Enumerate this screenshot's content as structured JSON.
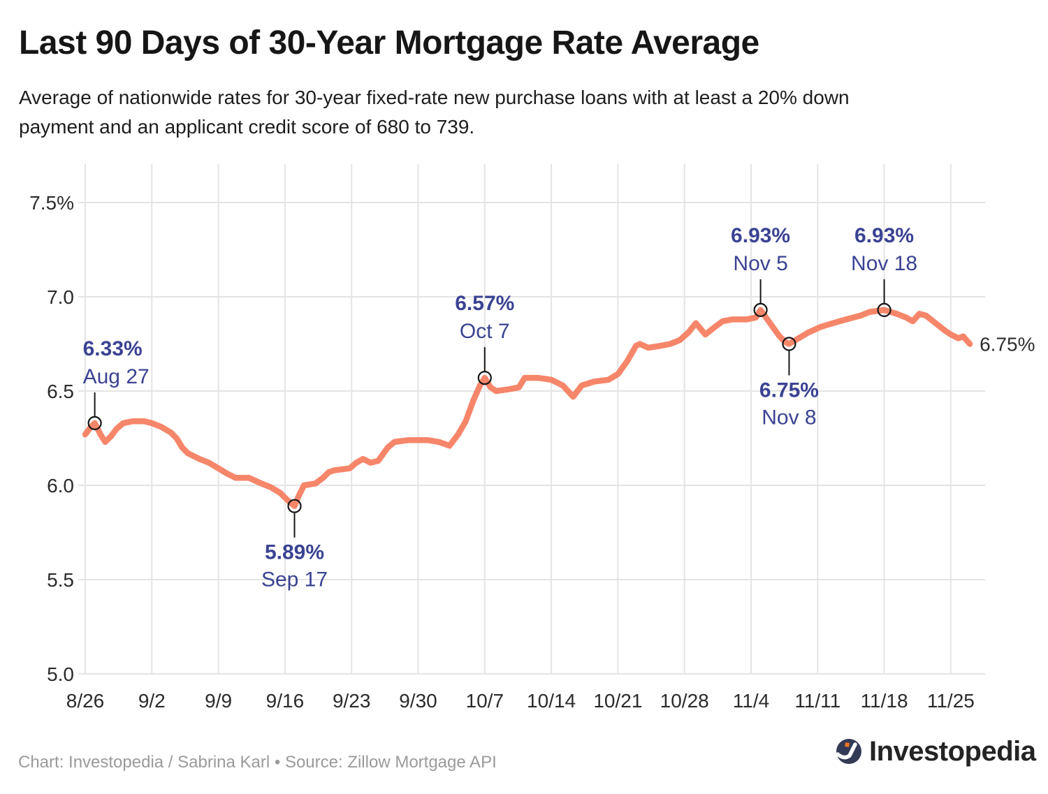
{
  "header": {
    "title": "Last 90 Days of 30-Year Mortgage Rate Average",
    "subtitle_lines": [
      "Average of nationwide rates for 30-year fixed-rate new purchase loans with at least a 20% down",
      "payment and an applicant credit score of 680 to 739."
    ]
  },
  "footer": {
    "credit": "Chart: Investopedia / Sabrina Karl • Source: Zillow Mortgage API",
    "logo_text": "Investopedia"
  },
  "colors": {
    "line": "#F6866A",
    "grid": "#E4E4E4",
    "tick_label": "#2B2B2B",
    "annotation": "#3A4392",
    "callout": "#161616",
    "end_label": "#2E2E2E",
    "logo_circle": "#333A56",
    "logo_dot": "#EE7623"
  },
  "chart_data": {
    "type": "line",
    "title": "Last 90 Days of 30-Year Mortgage Rate Average",
    "grid": true,
    "legend": false,
    "y_range": [
      5.0,
      7.5
    ],
    "x_ticks": {
      "labels": [
        "8/26",
        "9/2",
        "9/9",
        "9/16",
        "9/23",
        "9/30",
        "10/7",
        "10/14",
        "10/21",
        "10/28",
        "11/4",
        "11/11",
        "11/18",
        "11/25"
      ],
      "days": [
        0,
        7,
        14,
        21,
        28,
        35,
        42,
        49,
        56,
        63,
        70,
        77,
        84,
        91
      ]
    },
    "y_ticks": {
      "labels": [
        "7.5%",
        "7.0",
        "6.5",
        "6.0",
        "5.5",
        "5.0"
      ],
      "values": [
        7.5,
        7.0,
        6.5,
        6.0,
        5.5,
        5.0
      ]
    },
    "series": [
      {
        "name": "30-year mortgage rate average",
        "color": "#F6866A",
        "points": [
          [
            0,
            6.27
          ],
          [
            0.6,
            6.31
          ],
          [
            1,
            6.33
          ],
          [
            1.6,
            6.27
          ],
          [
            2.1,
            6.23
          ],
          [
            2.7,
            6.26
          ],
          [
            3.3,
            6.3
          ],
          [
            4,
            6.33
          ],
          [
            5,
            6.34
          ],
          [
            6.2,
            6.34
          ],
          [
            7,
            6.33
          ],
          [
            8,
            6.31
          ],
          [
            9,
            6.28
          ],
          [
            9.6,
            6.25
          ],
          [
            10.2,
            6.2
          ],
          [
            10.8,
            6.17
          ],
          [
            12,
            6.14
          ],
          [
            13,
            6.12
          ],
          [
            14,
            6.09
          ],
          [
            15,
            6.06
          ],
          [
            15.8,
            6.04
          ],
          [
            17.2,
            6.04
          ],
          [
            18.5,
            6.01
          ],
          [
            19.5,
            5.99
          ],
          [
            20.5,
            5.96
          ],
          [
            21.3,
            5.92
          ],
          [
            22,
            5.89
          ],
          [
            22.5,
            5.95
          ],
          [
            23,
            6.0
          ],
          [
            24.2,
            6.01
          ],
          [
            25,
            6.04
          ],
          [
            25.6,
            6.07
          ],
          [
            26.2,
            6.08
          ],
          [
            27.8,
            6.09
          ],
          [
            28.5,
            6.12
          ],
          [
            29.2,
            6.14
          ],
          [
            30,
            6.12
          ],
          [
            30.8,
            6.13
          ],
          [
            31.8,
            6.2
          ],
          [
            32.5,
            6.23
          ],
          [
            34,
            6.24
          ],
          [
            36,
            6.24
          ],
          [
            37.2,
            6.23
          ],
          [
            38.3,
            6.21
          ],
          [
            39.2,
            6.27
          ],
          [
            40,
            6.34
          ],
          [
            40.8,
            6.45
          ],
          [
            41.5,
            6.53
          ],
          [
            42,
            6.57
          ],
          [
            42.6,
            6.52
          ],
          [
            43.2,
            6.5
          ],
          [
            44.6,
            6.51
          ],
          [
            45.6,
            6.52
          ],
          [
            46.2,
            6.57
          ],
          [
            47.6,
            6.57
          ],
          [
            49,
            6.56
          ],
          [
            50.2,
            6.53
          ],
          [
            51.3,
            6.47
          ],
          [
            52.2,
            6.53
          ],
          [
            53.5,
            6.55
          ],
          [
            55,
            6.56
          ],
          [
            56,
            6.59
          ],
          [
            57,
            6.66
          ],
          [
            57.9,
            6.74
          ],
          [
            58.3,
            6.75
          ],
          [
            59.2,
            6.73
          ],
          [
            60.5,
            6.74
          ],
          [
            61.5,
            6.75
          ],
          [
            62.5,
            6.77
          ],
          [
            63.4,
            6.81
          ],
          [
            64.2,
            6.86
          ],
          [
            65.2,
            6.8
          ],
          [
            66.2,
            6.84
          ],
          [
            67,
            6.87
          ],
          [
            68,
            6.88
          ],
          [
            69.5,
            6.88
          ],
          [
            70.5,
            6.89
          ],
          [
            71,
            6.93
          ],
          [
            72,
            6.86
          ],
          [
            73,
            6.79
          ],
          [
            73.6,
            6.76
          ],
          [
            74,
            6.75
          ],
          [
            75,
            6.78
          ],
          [
            76,
            6.81
          ],
          [
            77.3,
            6.84
          ],
          [
            78.6,
            6.86
          ],
          [
            80,
            6.88
          ],
          [
            81.5,
            6.9
          ],
          [
            82.5,
            6.92
          ],
          [
            84,
            6.93
          ],
          [
            85.3,
            6.91
          ],
          [
            86.3,
            6.89
          ],
          [
            87,
            6.87
          ],
          [
            87.7,
            6.91
          ],
          [
            88.4,
            6.9
          ],
          [
            89.4,
            6.86
          ],
          [
            90.4,
            6.82
          ],
          [
            91,
            6.8
          ],
          [
            91.8,
            6.78
          ],
          [
            92.3,
            6.79
          ],
          [
            93,
            6.75
          ]
        ]
      }
    ],
    "annotations": [
      {
        "rate": "6.33%",
        "date": "Aug 27",
        "day": 1,
        "value": 6.33,
        "side": "above",
        "align": "left"
      },
      {
        "rate": "5.89%",
        "date": "Sep 17",
        "day": 22,
        "value": 5.89,
        "side": "below",
        "align": "center"
      },
      {
        "rate": "6.57%",
        "date": "Oct 7",
        "day": 42,
        "value": 6.57,
        "side": "above",
        "align": "center"
      },
      {
        "rate": "6.93%",
        "date": "Nov 5",
        "day": 71,
        "value": 6.93,
        "side": "above",
        "align": "center"
      },
      {
        "rate": "6.75%",
        "date": "Nov 8",
        "day": 74,
        "value": 6.75,
        "side": "below",
        "align": "center"
      },
      {
        "rate": "6.93%",
        "date": "Nov 18",
        "day": 84,
        "value": 6.93,
        "side": "above",
        "align": "center"
      }
    ],
    "end_label": "6.75%"
  }
}
